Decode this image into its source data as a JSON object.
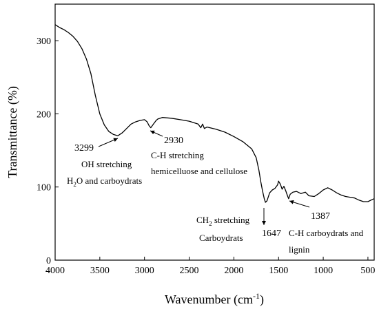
{
  "chart_data": {
    "type": "line",
    "xlabel": "Wavenumber (cm",
    "xlabel_sup": "-1",
    "xlabel_end": ")",
    "ylabel": "Transmittance (%)",
    "xlim": [
      4000,
      430
    ],
    "ylim": [
      0,
      350
    ],
    "x_reversed": true,
    "grid": false,
    "xticks": [
      4000,
      3500,
      3000,
      2500,
      2000,
      1500,
      1000,
      500
    ],
    "yticks": [
      0,
      100,
      200,
      300
    ],
    "series": [
      {
        "color": "#000000",
        "x": [
          4000,
          3950,
          3900,
          3850,
          3800,
          3750,
          3700,
          3650,
          3600,
          3550,
          3500,
          3450,
          3400,
          3350,
          3299,
          3250,
          3200,
          3150,
          3100,
          3050,
          3000,
          2970,
          2950,
          2930,
          2900,
          2870,
          2850,
          2800,
          2700,
          2600,
          2500,
          2400,
          2370,
          2350,
          2330,
          2300,
          2200,
          2100,
          2000,
          1900,
          1800,
          1750,
          1720,
          1700,
          1680,
          1660,
          1647,
          1630,
          1600,
          1570,
          1540,
          1510,
          1500,
          1480,
          1460,
          1440,
          1420,
          1400,
          1387,
          1370,
          1340,
          1300,
          1250,
          1200,
          1160,
          1100,
          1050,
          1000,
          950,
          900,
          850,
          800,
          750,
          700,
          650,
          600,
          550,
          500,
          450,
          430
        ],
        "y": [
          322,
          318,
          315,
          311,
          306,
          299,
          289,
          275,
          255,
          225,
          200,
          185,
          176,
          172,
          170,
          174,
          180,
          186,
          189,
          191,
          192,
          189,
          184,
          181,
          186,
          191,
          193,
          195,
          194,
          192,
          190,
          186,
          181,
          186,
          180,
          182,
          179,
          175,
          169,
          162,
          152,
          140,
          123,
          108,
          95,
          84,
          79,
          81,
          92,
          96,
          98,
          103,
          108,
          104,
          97,
          101,
          95,
          88,
          84,
          90,
          93,
          94,
          91,
          93,
          88,
          87,
          91,
          96,
          99,
          96,
          92,
          89,
          87,
          86,
          85,
          82,
          80,
          80,
          83,
          84
        ]
      }
    ],
    "annotations": [
      {
        "label": "3299",
        "lines": [
          "OH stretching",
          "H",
          "2",
          "O and carboydrats"
        ],
        "x": 3299,
        "y": 170
      },
      {
        "label": "2930",
        "lines": [
          "C-H stretching",
          "hemicelluose and cellulose"
        ],
        "x": 2930,
        "y": 181
      },
      {
        "label": "1647",
        "lines": [
          "CH",
          "2",
          " stretching",
          "Carboydrats"
        ],
        "x": 1647,
        "y": 79
      },
      {
        "label": "1387",
        "lines": [
          "C-H carboydrats and",
          "lignin"
        ],
        "x": 1387,
        "y": 84
      }
    ]
  }
}
